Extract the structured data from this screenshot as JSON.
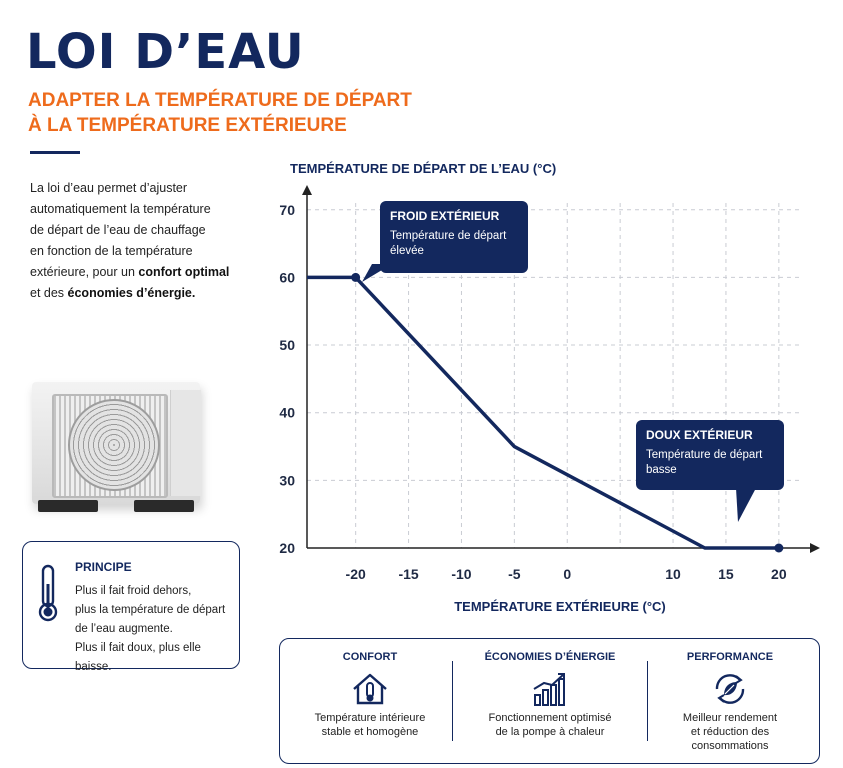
{
  "header": {
    "title": "LOI D’EAU",
    "subtitle_line1": "ADAPTER LA TEMPÉRATURE DE DÉPART",
    "subtitle_line2": "À LA TEMPÉRATURE EXTÉRIEURE"
  },
  "intro": {
    "line1": "La loi d’eau permet d’ajuster",
    "line2": "automatiquement la température",
    "line3": "de départ de l’eau de chauffage",
    "line4": "en fonction de la température",
    "line5_prefix": "extérieure, pour un ",
    "line5_bold": "confort optimal",
    "line6_prefix": "et des ",
    "line6_bold": "économies d’énergie."
  },
  "principle": {
    "title": "PRINCIPE",
    "line1": "Plus il fait froid dehors,",
    "line2": "plus la température de départ",
    "line3": "de l’eau augmente.",
    "line4": "Plus il fait doux, plus elle baisse."
  },
  "callouts": {
    "cold": {
      "title": "FROID EXTÉRIEUR",
      "line1": "Température de départ",
      "line2": "élevée"
    },
    "mild": {
      "title": "DOUX EXTÉRIEUR",
      "line1": "Température de départ",
      "line2": "basse"
    }
  },
  "chart_data": {
    "type": "line",
    "ylabel": "TEMPÉRATURE DE DÉPART DE L’EAU (°C)",
    "xlabel": "TEMPÉRATURE EXTÉRIEURE (°C)",
    "x_ticks": [
      -20,
      -15,
      -10,
      -5,
      0,
      5,
      10,
      15,
      20
    ],
    "x_tick_labels": [
      "-20",
      "-15",
      "-10",
      "-5",
      "0",
      "",
      "10",
      "15",
      "20"
    ],
    "y_ticks": [
      20,
      30,
      40,
      50,
      60,
      70
    ],
    "xlim": [
      -24.6,
      22
    ],
    "ylim": [
      20,
      71
    ],
    "grid": true,
    "series": [
      {
        "x": [
          -24.6,
          -20,
          -5,
          13,
          20
        ],
        "y": [
          60,
          60,
          35,
          20,
          20
        ],
        "markers": [
          [
            -20,
            60
          ],
          [
            20,
            20
          ]
        ]
      }
    ],
    "color": "#13285e"
  },
  "benefits": [
    {
      "title": "CONFORT",
      "icon": "house-thermometer-icon",
      "line1": "Température intérieure",
      "line2": "stable et homogène",
      "line3": ""
    },
    {
      "title": "ÉCONOMIES D’ÉNERGIE",
      "icon": "bar-chart-growth-icon",
      "line1": "Fonctionnement optimisé",
      "line2": "de la pompe à chaleur",
      "line3": ""
    },
    {
      "title": "PERFORMANCE",
      "icon": "leaf-cycle-icon",
      "line1": "Meilleur rendement",
      "line2": "et réduction des",
      "line3": "consommations"
    }
  ]
}
